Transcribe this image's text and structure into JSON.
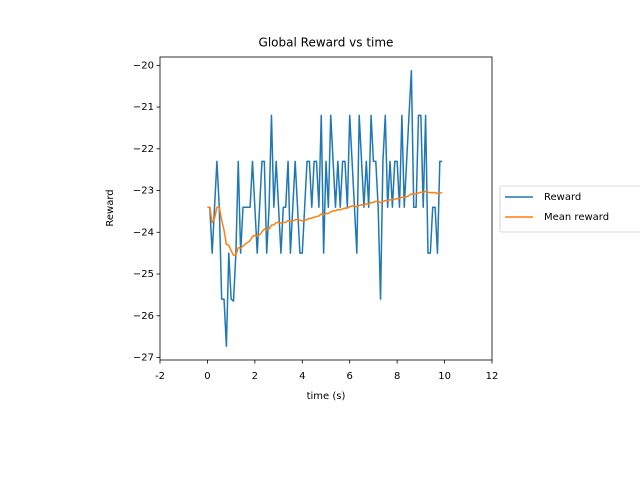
{
  "chart_data": {
    "type": "line",
    "title": "Global Reward vs time",
    "x_label": "time (s)",
    "y_label": "Reward",
    "x": [
      0,
      0.1,
      0.2,
      0.3,
      0.4,
      0.5,
      0.6,
      0.7,
      0.8,
      0.9,
      1,
      1.1,
      1.2,
      1.3,
      1.4,
      1.5,
      1.6,
      1.7,
      1.8,
      1.9,
      2,
      2.1,
      2.2,
      2.3,
      2.4,
      2.5,
      2.6,
      2.7,
      2.8,
      2.9,
      3,
      3.1,
      3.2,
      3.3,
      3.4,
      3.5,
      3.6,
      3.7,
      3.8,
      3.9,
      4,
      4.1,
      4.2,
      4.3,
      4.4,
      4.5,
      4.6,
      4.7,
      4.8,
      4.9,
      5,
      5.1,
      5.2,
      5.3,
      5.4,
      5.5,
      5.6,
      5.7,
      5.8,
      5.9,
      6,
      6.1,
      6.2,
      6.3,
      6.4,
      6.5,
      6.6,
      6.7,
      6.8,
      6.9,
      7,
      7.1,
      7.2,
      7.3,
      7.4,
      7.5,
      7.6,
      7.7,
      7.8,
      7.9,
      8,
      8.1,
      8.2,
      8.3,
      8.4,
      8.5,
      8.6,
      8.7,
      8.8,
      8.9,
      9,
      9.1,
      9.2,
      9.3,
      9.4,
      9.5,
      9.6,
      9.7,
      9.8,
      9.9
    ],
    "series": [
      {
        "name": "Reward",
        "color": "#1f77b4",
        "values": [
          -23.4,
          -23.4,
          -24.5,
          -23.4,
          -22.3,
          -23.4,
          -25.6,
          -25.6,
          -26.73,
          -24.5,
          -25.6,
          -25.65,
          -24.5,
          -22.3,
          -24.5,
          -23.4,
          -23.4,
          -23.4,
          -23.4,
          -22.3,
          -23.4,
          -24.5,
          -23.4,
          -22.3,
          -22.3,
          -24.5,
          -23.4,
          -21.2,
          -23.4,
          -22.3,
          -23.4,
          -24.5,
          -23.4,
          -23.4,
          -22.3,
          -24.5,
          -23.4,
          -22.3,
          -23.4,
          -24.5,
          -24.5,
          -23.4,
          -22.3,
          -22.3,
          -23.4,
          -22.3,
          -22.3,
          -23.4,
          -21.2,
          -24.5,
          -22.3,
          -23.4,
          -21.2,
          -22.3,
          -23.4,
          -22.3,
          -23.4,
          -22.3,
          -22.3,
          -23.4,
          -21.2,
          -22.3,
          -23.4,
          -24.5,
          -21.2,
          -22.3,
          -23.4,
          -22.3,
          -23.4,
          -21.2,
          -22.3,
          -22.3,
          -23.4,
          -25.6,
          -22.3,
          -21.2,
          -23.4,
          -22.3,
          -23.4,
          -22.3,
          -22.3,
          -23.4,
          -21.2,
          -23.4,
          -22.3,
          -21.2,
          -20.13,
          -23.4,
          -23.4,
          -21.2,
          -21.2,
          -23.4,
          -21.2,
          -24.5,
          -24.5,
          -23.4,
          -23.4,
          -24.5,
          -22.3,
          -22.3
        ]
      },
      {
        "name": "Mean reward",
        "color": "#ff7f0e",
        "values": [
          -23.4,
          -23.4,
          -23.77,
          -23.67,
          -23.4,
          -23.4,
          -23.71,
          -23.95,
          -24.29,
          -24.31,
          -24.44,
          -24.55,
          -24.54,
          -24.37,
          -24.38,
          -24.33,
          -24.28,
          -24.24,
          -24.2,
          -24.1,
          -24.07,
          -24.09,
          -24.06,
          -23.99,
          -23.92,
          -23.94,
          -23.92,
          -23.83,
          -23.82,
          -23.77,
          -23.76,
          -23.78,
          -23.77,
          -23.76,
          -23.72,
          -23.74,
          -23.73,
          -23.7,
          -23.69,
          -23.71,
          -23.73,
          -23.72,
          -23.69,
          -23.67,
          -23.66,
          -23.64,
          -23.62,
          -23.61,
          -23.56,
          -23.58,
          -23.55,
          -23.55,
          -23.51,
          -23.49,
          -23.48,
          -23.46,
          -23.46,
          -23.44,
          -23.42,
          -23.42,
          -23.39,
          -23.37,
          -23.37,
          -23.39,
          -23.36,
          -23.34,
          -23.34,
          -23.32,
          -23.32,
          -23.29,
          -23.28,
          -23.26,
          -23.26,
          -23.29,
          -23.27,
          -23.24,
          -23.24,
          -23.22,
          -23.22,
          -23.21,
          -23.19,
          -23.19,
          -23.16,
          -23.16,
          -23.15,
          -23.12,
          -23.08,
          -23.08,
          -23.08,
          -23.06,
          -23.04,
          -23.04,
          -23.02,
          -23.04,
          -23.05,
          -23.05,
          -23.05,
          -23.07,
          -23.06,
          -23.05
        ]
      }
    ],
    "xlim": [
      -2,
      12
    ],
    "xticks": [
      -2,
      0,
      2,
      4,
      6,
      8,
      10,
      12
    ],
    "ylim": [
      -27.06,
      -19.8
    ],
    "yticks": [
      {
        "value": -27,
        "label": "−27"
      },
      {
        "value": -26,
        "label": "−26"
      },
      {
        "value": -25,
        "label": "−25"
      },
      {
        "value": -24,
        "label": "−24"
      },
      {
        "value": -23,
        "label": "−23"
      },
      {
        "value": -22,
        "label": "−22"
      },
      {
        "value": -21,
        "label": "−21"
      },
      {
        "value": -20,
        "label": "−20"
      }
    ],
    "legend_position": "right"
  }
}
